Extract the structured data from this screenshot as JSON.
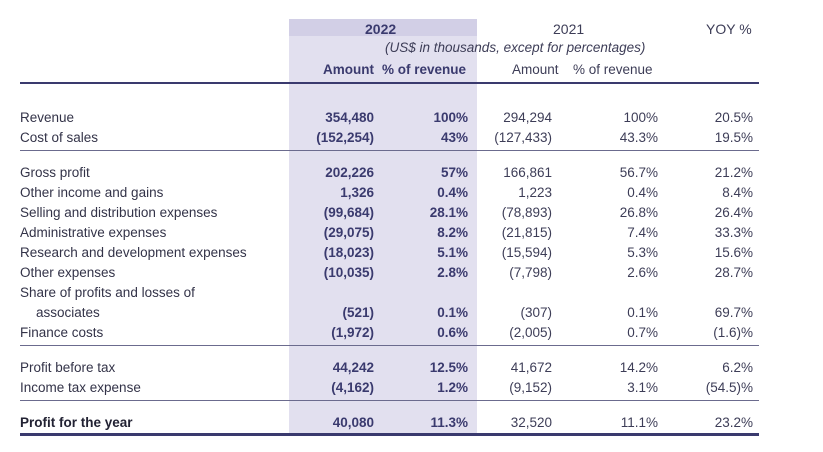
{
  "header": {
    "year_current": "2022",
    "year_prior": "2021",
    "yoy": "YOY %",
    "units_note": "(US$ in thousands, except for percentages)",
    "amount": "Amount",
    "pct_revenue": "% of revenue"
  },
  "rows": [
    {
      "label": "Revenue",
      "a22": "354,480",
      "p22": "100%",
      "a21": "294,294",
      "p21": "100%",
      "yoy": "20.5%"
    },
    {
      "label": "Cost of sales",
      "a22": "(152,254)",
      "p22": "43%",
      "a21": "(127,433)",
      "p21": "43.3%",
      "yoy": "19.5%"
    },
    {
      "label": "Gross profit",
      "a22": "202,226",
      "p22": "57%",
      "a21": "166,861",
      "p21": "56.7%",
      "yoy": "21.2%"
    },
    {
      "label": "Other income and gains",
      "a22": "1,326",
      "p22": "0.4%",
      "a21": "1,223",
      "p21": "0.4%",
      "yoy": "8.4%"
    },
    {
      "label": "Selling and distribution expenses",
      "a22": "(99,684)",
      "p22": "28.1%",
      "a21": "(78,893)",
      "p21": "26.8%",
      "yoy": "26.4%"
    },
    {
      "label": "Administrative expenses",
      "a22": "(29,075)",
      "p22": "8.2%",
      "a21": "(21,815)",
      "p21": "7.4%",
      "yoy": "33.3%"
    },
    {
      "label": "Research and development expenses",
      "a22": "(18,023)",
      "p22": "5.1%",
      "a21": "(15,594)",
      "p21": "5.3%",
      "yoy": "15.6%"
    },
    {
      "label": "Other expenses",
      "a22": "(10,035)",
      "p22": "2.8%",
      "a21": "(7,798)",
      "p21": "2.6%",
      "yoy": "28.7%"
    },
    {
      "label": "Share of profits and losses of",
      "label2": "associates",
      "a22": "(521)",
      "p22": "0.1%",
      "a21": "(307)",
      "p21": "0.1%",
      "yoy": "69.7%"
    },
    {
      "label": "Finance costs",
      "a22": "(1,972)",
      "p22": "0.6%",
      "a21": "(2,005)",
      "p21": "0.7%",
      "yoy": "(1.6)%"
    },
    {
      "label": "Profit before tax",
      "a22": "44,242",
      "p22": "12.5%",
      "a21": "41,672",
      "p21": "14.2%",
      "yoy": "6.2%"
    },
    {
      "label": "Income tax expense",
      "a22": "(4,162)",
      "p22": "1.2%",
      "a21": "(9,152)",
      "p21": "3.1%",
      "yoy": "(54.5)%"
    },
    {
      "label": "Profit for the year",
      "a22": "40,080",
      "p22": "11.3%",
      "a21": "32,520",
      "p21": "11.1%",
      "yoy": "23.2%"
    }
  ]
}
